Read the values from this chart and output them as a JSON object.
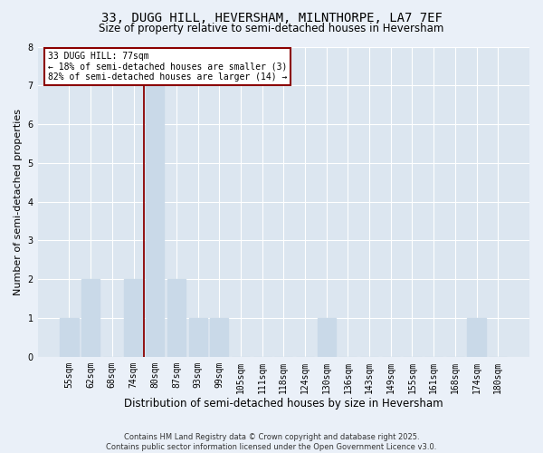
{
  "title": "33, DUGG HILL, HEVERSHAM, MILNTHORPE, LA7 7EF",
  "subtitle": "Size of property relative to semi-detached houses in Heversham",
  "xlabel": "Distribution of semi-detached houses by size in Heversham",
  "ylabel": "Number of semi-detached properties",
  "categories": [
    "55sqm",
    "62sqm",
    "68sqm",
    "74sqm",
    "80sqm",
    "87sqm",
    "93sqm",
    "99sqm",
    "105sqm",
    "111sqm",
    "118sqm",
    "124sqm",
    "130sqm",
    "136sqm",
    "143sqm",
    "149sqm",
    "155sqm",
    "161sqm",
    "168sqm",
    "174sqm",
    "180sqm"
  ],
  "values": [
    1,
    2,
    0,
    2,
    7,
    2,
    1,
    1,
    0,
    0,
    0,
    0,
    1,
    0,
    0,
    0,
    0,
    0,
    0,
    1,
    0
  ],
  "bar_color": "#c9d9e8",
  "subject_line_index": 3.5,
  "annotation_text": "33 DUGG HILL: 77sqm\n← 18% of semi-detached houses are smaller (3)\n82% of semi-detached houses are larger (14) →",
  "footer_text": "Contains HM Land Registry data © Crown copyright and database right 2025.\nContains public sector information licensed under the Open Government Licence v3.0.",
  "ylim": [
    0,
    8
  ],
  "yticks": [
    0,
    1,
    2,
    3,
    4,
    5,
    6,
    7,
    8
  ],
  "bg_color": "#eaf0f8",
  "plot_bg_color": "#dce6f0",
  "grid_color": "#ffffff",
  "subject_line_color": "#8b0000",
  "title_fontsize": 10,
  "subtitle_fontsize": 8.5,
  "ylabel_fontsize": 8,
  "xlabel_fontsize": 8.5,
  "tick_fontsize": 7,
  "annotation_fontsize": 7,
  "footer_fontsize": 6
}
